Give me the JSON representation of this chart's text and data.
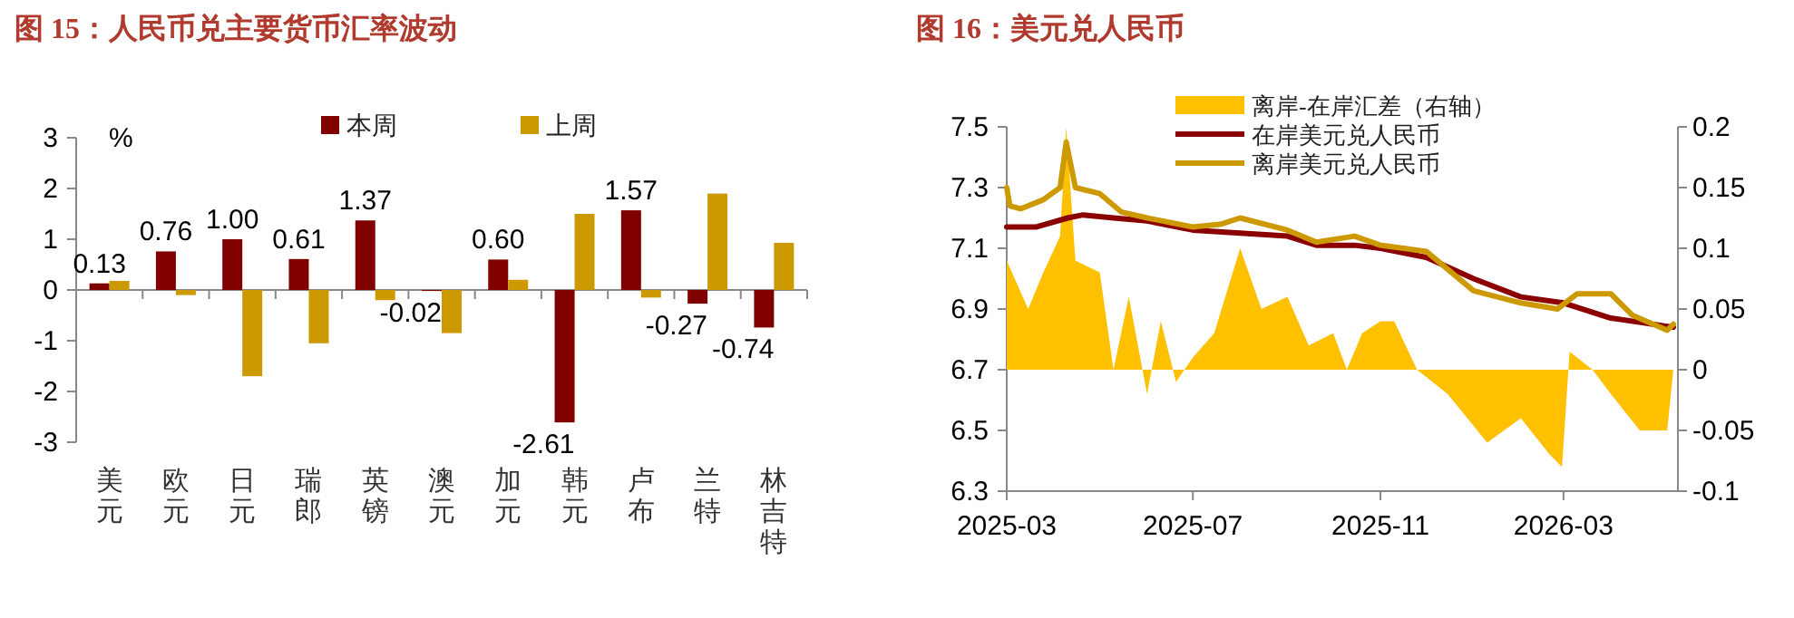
{
  "chart_data": [
    {
      "type": "bar",
      "title": "图 15：人民币兑主要货币汇率波动",
      "categories": [
        "美元",
        "欧元",
        "日元",
        "瑞郎",
        "英镑",
        "澳元",
        "加元",
        "韩元",
        "卢布",
        "兰特",
        "林吉特"
      ],
      "series": [
        {
          "name": "本周",
          "color": "#800000",
          "values": [
            0.13,
            0.76,
            1.0,
            0.61,
            1.37,
            -0.02,
            0.6,
            -2.61,
            1.57,
            -0.27,
            -0.74
          ],
          "value_labels": [
            "0.13",
            "0.76",
            "1.00",
            "0.61",
            "1.37",
            "-0.02",
            "0.60",
            "-2.61",
            "1.57",
            "-0.27",
            "-0.74"
          ]
        },
        {
          "name": "上周",
          "color": "#cc9900",
          "values": [
            0.18,
            -0.1,
            -1.7,
            -1.05,
            -0.2,
            -0.85,
            0.2,
            1.5,
            -0.15,
            1.9,
            0.93
          ]
        }
      ],
      "ylim": [
        -3,
        3
      ],
      "yticks": [
        -3,
        -2,
        -1,
        0,
        1,
        2,
        3
      ],
      "annotations": [
        "%"
      ],
      "legend": "top"
    },
    {
      "type": "line",
      "title": "图 16：美元兑人民币",
      "xlim": [
        "2025-03-01",
        "2026-05-15"
      ],
      "xticks": [
        "2025-03",
        "2025-07",
        "2025-11",
        "2026-03"
      ],
      "ylim": [
        6.3,
        7.5
      ],
      "yticks": [
        6.3,
        6.5,
        6.7,
        6.9,
        7.1,
        7.3,
        7.5
      ],
      "y2lim": [
        -0.1,
        0.2
      ],
      "y2ticks": [
        -0.1,
        -0.05,
        0,
        0.05,
        0.1,
        0.15,
        0.2
      ],
      "legend": "top left",
      "series": [
        {
          "name": "离岸-在岸汇差（右轴）",
          "type": "area",
          "axis": "y2",
          "color": "#ffc000",
          "x": [
            "2025-03-01",
            "2025-03-08",
            "2025-03-15",
            "2025-03-25",
            "2025-04-05",
            "2025-04-09",
            "2025-04-15",
            "2025-05-01",
            "2025-05-10",
            "2025-05-20",
            "2025-06-01",
            "2025-06-10",
            "2025-06-20",
            "2025-07-01",
            "2025-07-15",
            "2025-08-01",
            "2025-08-15",
            "2025-09-01",
            "2025-09-15",
            "2025-10-01",
            "2025-10-10",
            "2025-10-20",
            "2025-11-01",
            "2025-11-10",
            "2025-11-25",
            "2025-12-15",
            "2026-01-10",
            "2026-02-01",
            "2026-02-20",
            "2026-02-28",
            "2026-03-05",
            "2026-03-20",
            "2026-04-01",
            "2026-04-20",
            "2026-05-08",
            "2026-05-12"
          ],
          "values": [
            0.09,
            0.07,
            0.05,
            0.08,
            0.11,
            0.2,
            0.09,
            0.08,
            0.0,
            0.06,
            -0.02,
            0.04,
            -0.01,
            0.01,
            0.03,
            0.1,
            0.05,
            0.06,
            0.02,
            0.03,
            0.0,
            0.03,
            0.04,
            0.04,
            0.0,
            -0.02,
            -0.06,
            -0.04,
            -0.07,
            -0.08,
            0.015,
            0.0,
            -0.02,
            -0.05,
            -0.05,
            0.0
          ]
        },
        {
          "name": "在岸美元兑人民币",
          "color": "#8b0000",
          "x": [
            "2025-03-01",
            "2025-03-20",
            "2025-04-10",
            "2025-04-20",
            "2025-05-10",
            "2025-06-01",
            "2025-07-01",
            "2025-08-01",
            "2025-09-01",
            "2025-09-20",
            "2025-10-15",
            "2025-11-01",
            "2025-12-01",
            "2026-01-01",
            "2026-02-01",
            "2026-03-01",
            "2026-04-01",
            "2026-05-12"
          ],
          "values": [
            7.17,
            7.17,
            7.2,
            7.21,
            7.2,
            7.19,
            7.16,
            7.15,
            7.14,
            7.11,
            7.11,
            7.1,
            7.07,
            7.0,
            6.94,
            6.92,
            6.87,
            6.84
          ]
        },
        {
          "name": "离岸美元兑人民币",
          "color": "#cc9900",
          "x": [
            "2025-03-01",
            "2025-03-03",
            "2025-03-10",
            "2025-03-25",
            "2025-04-05",
            "2025-04-09",
            "2025-04-15",
            "2025-05-01",
            "2025-05-15",
            "2025-06-01",
            "2025-07-01",
            "2025-07-20",
            "2025-08-01",
            "2025-09-01",
            "2025-09-20",
            "2025-10-15",
            "2025-11-01",
            "2025-12-01",
            "2026-01-01",
            "2026-02-01",
            "2026-02-25",
            "2026-03-10",
            "2026-04-01",
            "2026-04-15",
            "2026-05-08",
            "2026-05-12"
          ],
          "values": [
            7.3,
            7.24,
            7.23,
            7.26,
            7.3,
            7.45,
            7.3,
            7.28,
            7.22,
            7.2,
            7.17,
            7.18,
            7.2,
            7.16,
            7.12,
            7.14,
            7.11,
            7.09,
            6.96,
            6.92,
            6.9,
            6.95,
            6.95,
            6.88,
            6.83,
            6.85
          ]
        }
      ]
    }
  ]
}
